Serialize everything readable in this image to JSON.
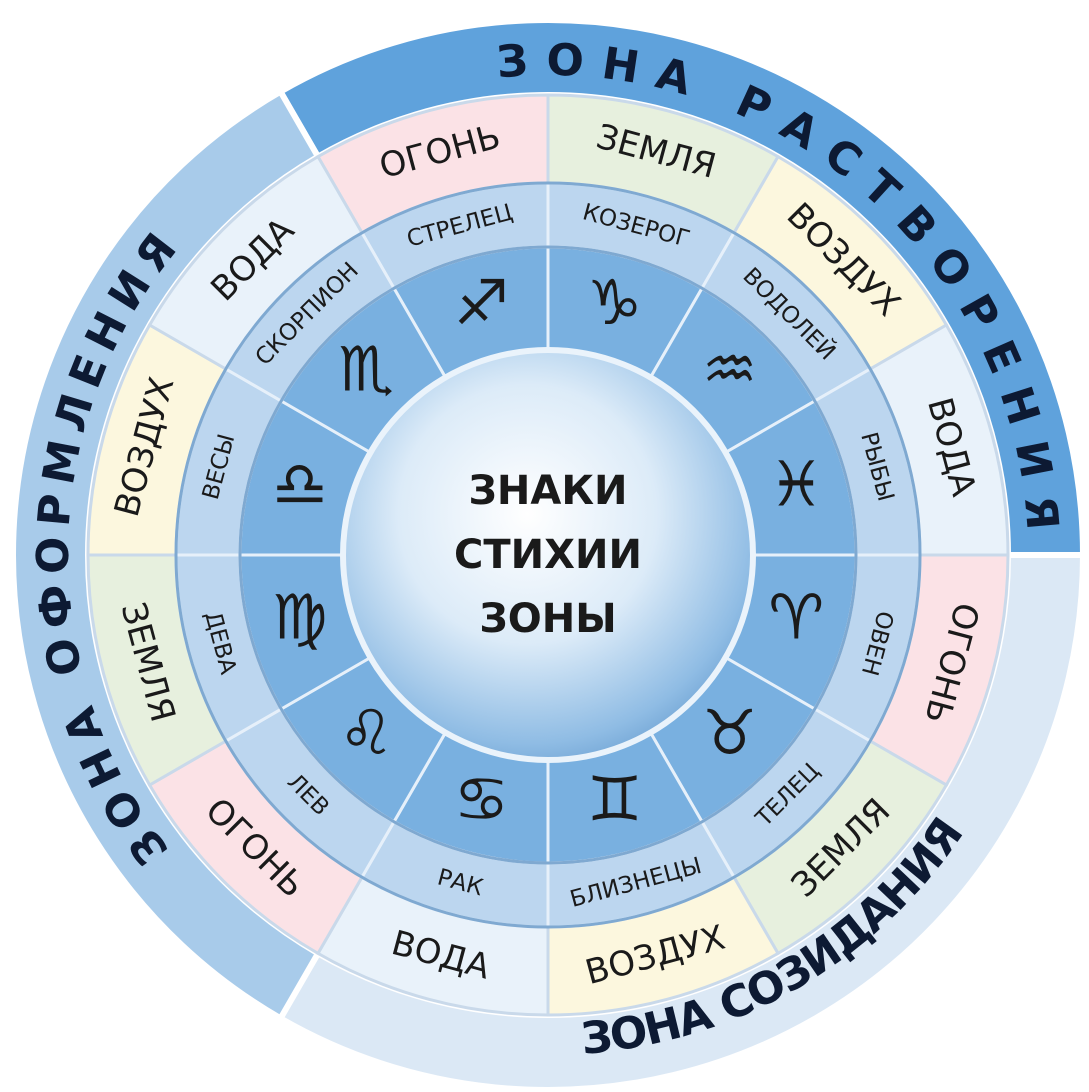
{
  "center_lines": [
    "ЗНАКИ",
    "СТИХИИ",
    "ЗОНЫ"
  ],
  "zones": [
    {
      "label": "ЗОНА РАСТВОРЕНИЯ",
      "color": "#5fa2dc"
    },
    {
      "label": "ЗОНА СОЗИДАНИЯ",
      "color": "#dbe8f5"
    },
    {
      "label": "ЗОНА ОФОРМЛЕНИЯ",
      "color": "#a8cbea"
    }
  ],
  "sectors": [
    {
      "sign": "СТРЕЛЕЦ",
      "symbol": "♐",
      "element": "ОГОНЬ",
      "color": "#fbe2e6"
    },
    {
      "sign": "КОЗЕРОГ",
      "symbol": "♑",
      "element": "ЗЕМЛЯ",
      "color": "#e7f0de"
    },
    {
      "sign": "ВОДОЛЕЙ",
      "symbol": "♒",
      "element": "ВОЗДУХ",
      "color": "#fcf7de"
    },
    {
      "sign": "РЫБЫ",
      "symbol": "♓",
      "element": "ВОДА",
      "color": "#e9f2fa"
    },
    {
      "sign": "ОВЕН",
      "symbol": "♈",
      "element": "ОГОНЬ",
      "color": "#fbe2e6"
    },
    {
      "sign": "ТЕЛЕЦ",
      "symbol": "♉",
      "element": "ЗЕМЛЯ",
      "color": "#e7f0de"
    },
    {
      "sign": "БЛИЗНЕЦЫ",
      "symbol": "♊",
      "element": "ВОЗДУХ",
      "color": "#fcf7de"
    },
    {
      "sign": "РАК",
      "symbol": "♋",
      "element": "ВОДА",
      "color": "#e9f2fa"
    },
    {
      "sign": "ЛЕВ",
      "symbol": "♌",
      "element": "ОГОНЬ",
      "color": "#fbe2e6"
    },
    {
      "sign": "ДЕВА",
      "symbol": "♍",
      "element": "ЗЕМЛЯ",
      "color": "#e7f0de"
    },
    {
      "sign": "ВЕСЫ",
      "symbol": "♎",
      "element": "ВОЗДУХ",
      "color": "#fcf7de"
    },
    {
      "sign": "СКОРПИОН",
      "symbol": "♏",
      "element": "ВОДА",
      "color": "#e9f2fa"
    }
  ]
}
